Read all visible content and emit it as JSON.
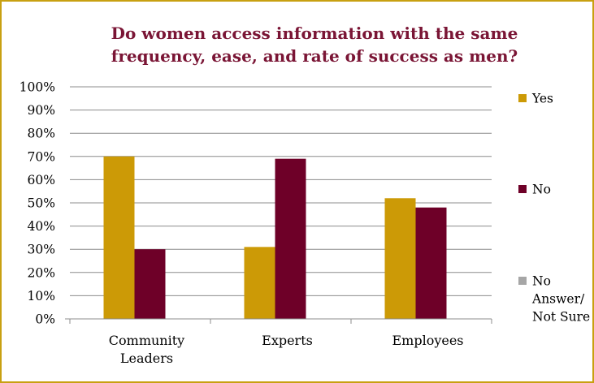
{
  "chart_data": {
    "type": "bar",
    "title": "Do women access information with the same frequency, ease, and rate of success as men?",
    "title_lines": [
      "Do women access information with the same",
      "frequency, ease, and rate of success as men?"
    ],
    "categories": [
      "Community Leaders",
      "Experts",
      "Employees"
    ],
    "category_lines": [
      [
        "Community",
        "Leaders"
      ],
      [
        "Experts"
      ],
      [
        "Employees"
      ]
    ],
    "series": [
      {
        "name": "Yes",
        "legend_lines": [
          "Yes"
        ],
        "color": "#cc9a06",
        "values": [
          70,
          31,
          52
        ]
      },
      {
        "name": "No",
        "legend_lines": [
          "No"
        ],
        "color": "#6e0028",
        "values": [
          30,
          69,
          48
        ]
      },
      {
        "name": "No Answer/ Not Sure",
        "legend_lines": [
          "No",
          "Answer/",
          "Not Sure"
        ],
        "color": "#a6a6a6",
        "values": [
          0,
          0,
          0
        ]
      }
    ],
    "ylim": [
      0,
      100
    ],
    "ytick_step": 10,
    "ytick_suffix": "%",
    "grid": true,
    "legend_position": "right",
    "xlabel": "",
    "ylabel": ""
  }
}
